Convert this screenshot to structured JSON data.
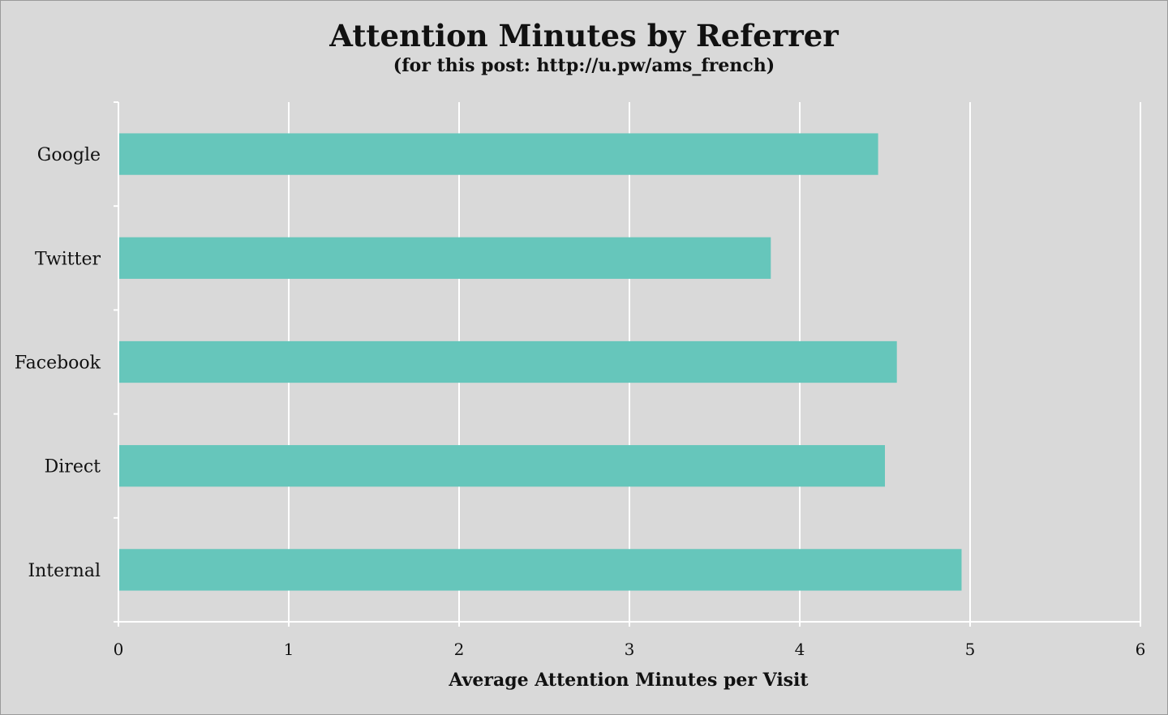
{
  "chart_data": {
    "type": "bar",
    "orientation": "horizontal",
    "title": "Attention Minutes by Referrer",
    "subtitle": "(for this post: http://u.pw/ams_french)",
    "categories": [
      "Google",
      "Twitter",
      "Facebook",
      "Direct",
      "Internal"
    ],
    "values": [
      4.46,
      3.83,
      4.57,
      4.5,
      4.95
    ],
    "xlabel": "Average Attention Minutes per Visit",
    "ylabel": "",
    "xlim": [
      0,
      6
    ],
    "xticks": [
      "0",
      "1",
      "2",
      "3",
      "4",
      "5",
      "6"
    ],
    "grid": true,
    "legend": "none",
    "colors": {
      "bar": "#66c6bb",
      "background": "#d9d9d9",
      "gridline": "#ffffff"
    }
  }
}
